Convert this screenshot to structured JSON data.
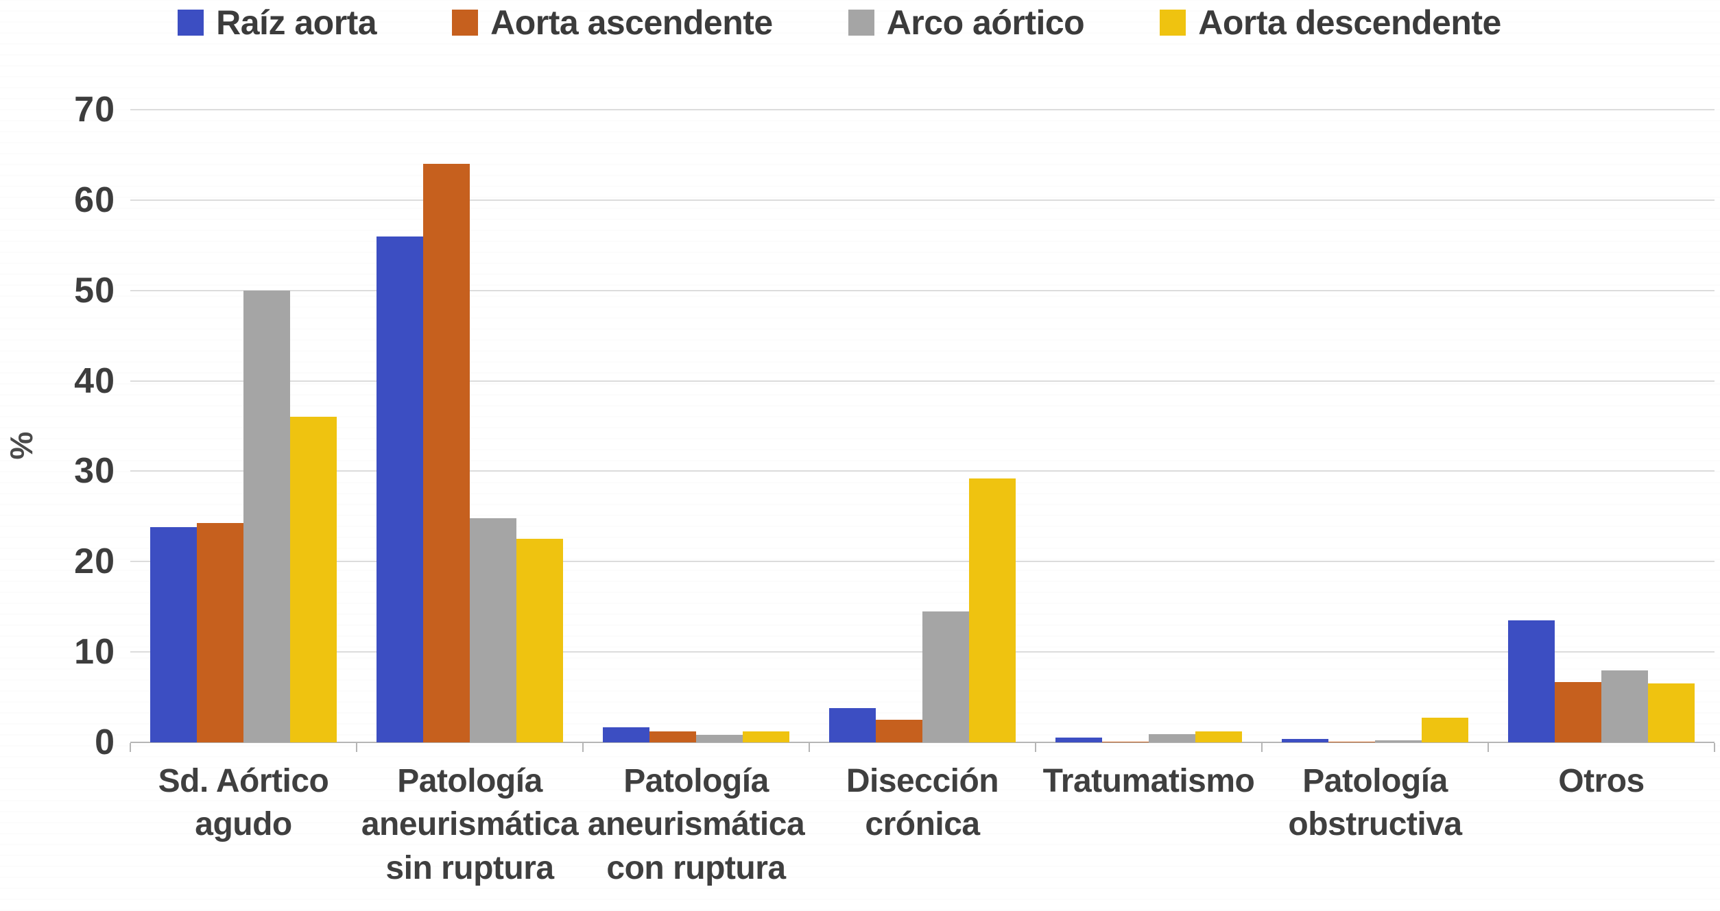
{
  "chart_data": {
    "type": "bar",
    "title": "",
    "xlabel": "",
    "ylabel": "%",
    "ylim": [
      0,
      70
    ],
    "yticks": [
      0,
      10,
      20,
      30,
      40,
      50,
      60,
      70
    ],
    "grid": true,
    "legend_position": "top",
    "categories": [
      "Sd. Aórtico\nagudo",
      "Patología\naneurismática\nsin ruptura",
      "Patología\naneurismática\ncon ruptura",
      "Disección\ncrónica",
      "Tratumatismo",
      "Patología\nobstructiva",
      "Otros"
    ],
    "series": [
      {
        "name": "Raíz aorta",
        "color": "#3C4EC2",
        "values": [
          23.8,
          56.0,
          1.7,
          3.8,
          0.5,
          0.4,
          13.5
        ]
      },
      {
        "name": "Aorta ascendente",
        "color": "#C6601E",
        "values": [
          24.3,
          64.0,
          1.2,
          2.5,
          0.1,
          0.1,
          6.7
        ]
      },
      {
        "name": "Arco aórtico",
        "color": "#A5A5A5",
        "values": [
          50.0,
          24.8,
          0.8,
          14.5,
          0.9,
          0.2,
          8.0
        ]
      },
      {
        "name": "Aorta descendente",
        "color": "#EFC310",
        "values": [
          36.0,
          22.5,
          1.2,
          29.2,
          1.2,
          2.7,
          6.5
        ]
      }
    ]
  }
}
